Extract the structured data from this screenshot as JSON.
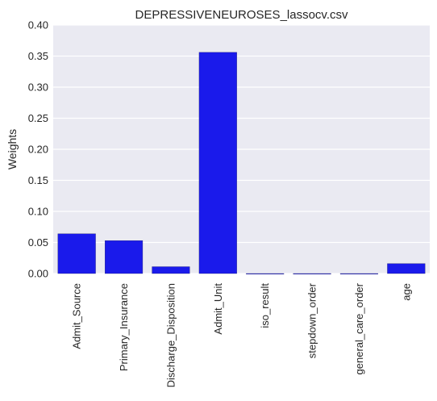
{
  "chart_data": {
    "type": "bar",
    "title": "DEPRESSIVENEUROSES_lassocv.csv",
    "xlabel": "",
    "ylabel": "Weights",
    "categories": [
      "Admit_Source",
      "Primary_Insurance",
      "Discharge_Disposition",
      "Admit_Unit",
      "iso_result",
      "stepdown_order",
      "general_care_order",
      "age"
    ],
    "values": [
      0.064,
      0.053,
      0.011,
      0.356,
      0.0,
      0.0,
      0.0,
      0.016
    ],
    "ylim": [
      0,
      0.4
    ],
    "yticks": [
      "0.00",
      "0.05",
      "0.10",
      "0.15",
      "0.20",
      "0.25",
      "0.30",
      "0.35",
      "0.40"
    ],
    "grid": true,
    "bar_color": "#1a1aeb",
    "background_color": "#eaeaf2"
  }
}
